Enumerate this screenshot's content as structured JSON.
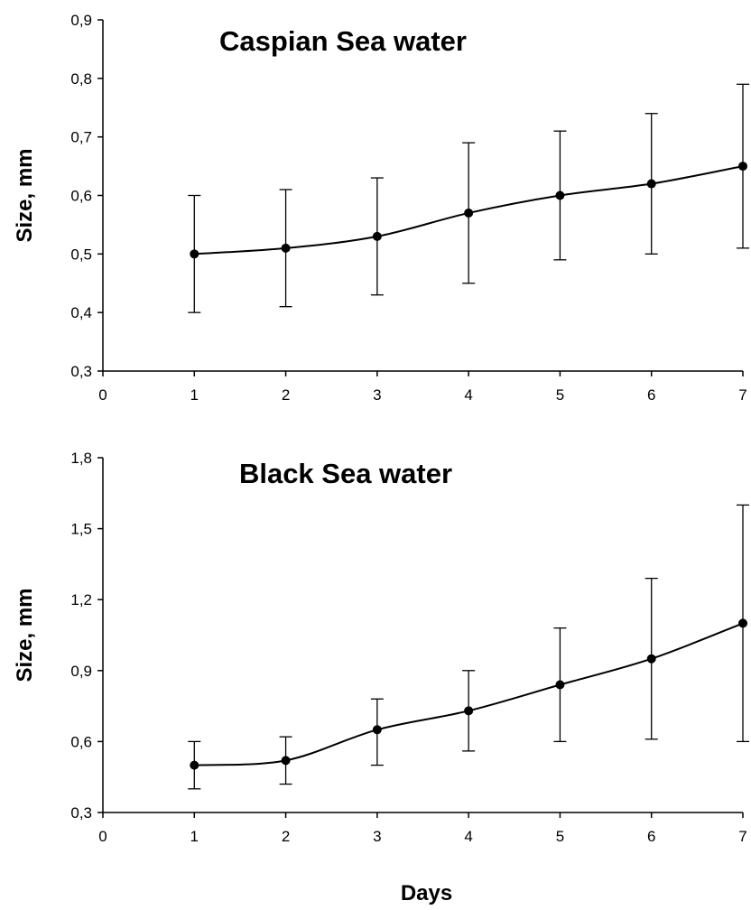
{
  "chart_data": [
    {
      "type": "line",
      "title": "Caspian Sea water",
      "xlabel": "",
      "ylabel": "Size, mm",
      "xlim": [
        0,
        7
      ],
      "ylim": [
        0.3,
        0.9
      ],
      "x_ticks": [
        "0",
        "1",
        "2",
        "3",
        "4",
        "5",
        "6",
        "7"
      ],
      "y_ticks": [
        "0,3",
        "0,4",
        "0,5",
        "0,6",
        "0,7",
        "0,8",
        "0,9"
      ],
      "grid": false,
      "series": [
        {
          "x": [
            1,
            2,
            3,
            4,
            5,
            6,
            7
          ],
          "values": [
            0.5,
            0.51,
            0.53,
            0.57,
            0.6,
            0.62,
            0.65
          ],
          "error_low": [
            0.4,
            0.41,
            0.43,
            0.45,
            0.49,
            0.5,
            0.51
          ],
          "error_high": [
            0.6,
            0.61,
            0.63,
            0.69,
            0.71,
            0.74,
            0.79
          ]
        }
      ]
    },
    {
      "type": "line",
      "title": "Black Sea water",
      "xlabel": "Days",
      "ylabel": "Size, mm",
      "xlim": [
        0,
        7
      ],
      "ylim": [
        0.3,
        1.8
      ],
      "x_ticks": [
        "0",
        "1",
        "2",
        "3",
        "4",
        "5",
        "6",
        "7"
      ],
      "y_ticks": [
        "0,3",
        "0,6",
        "0,9",
        "1,2",
        "1,5",
        "1,8"
      ],
      "grid": false,
      "series": [
        {
          "x": [
            1,
            2,
            3,
            4,
            5,
            6,
            7
          ],
          "values": [
            0.5,
            0.52,
            0.65,
            0.73,
            0.84,
            0.95,
            1.1
          ],
          "error_low": [
            0.4,
            0.42,
            0.5,
            0.56,
            0.6,
            0.61,
            0.6
          ],
          "error_high": [
            0.6,
            0.62,
            0.78,
            0.9,
            1.08,
            1.29,
            1.6
          ]
        }
      ]
    }
  ]
}
